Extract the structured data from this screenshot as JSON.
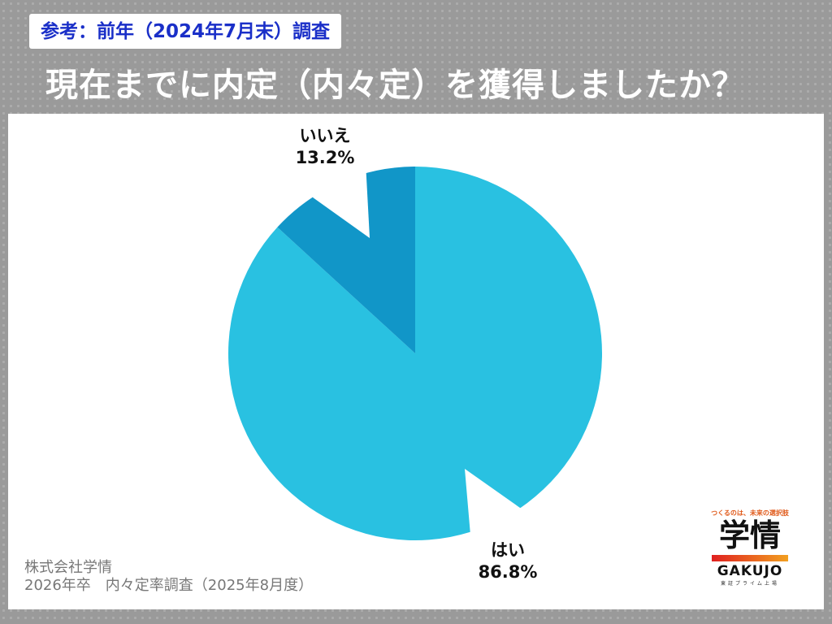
{
  "header": {
    "note": "参考：前年（2024年7月末）調査",
    "title": "現在までに内定（内々定）を獲得しましたか？"
  },
  "chart_data": {
    "type": "pie",
    "title": "",
    "categories": [
      "はい",
      "いいえ"
    ],
    "values": [
      86.8,
      13.2
    ],
    "labels": [
      "86.8%",
      "13.2%"
    ],
    "colors": [
      "#29C1E1",
      "#1196C8"
    ],
    "start": "12 o'clock",
    "direction": "clockwise"
  },
  "footer": {
    "company": "株式会社学情",
    "survey": "2026年卒　内々定率調査（2025年8月度）"
  },
  "logo": {
    "tagline": "つくるのは、未来の選択肢",
    "kanji": "学情",
    "roman": "GAKUJO",
    "exchange": "東証プライム上場"
  }
}
